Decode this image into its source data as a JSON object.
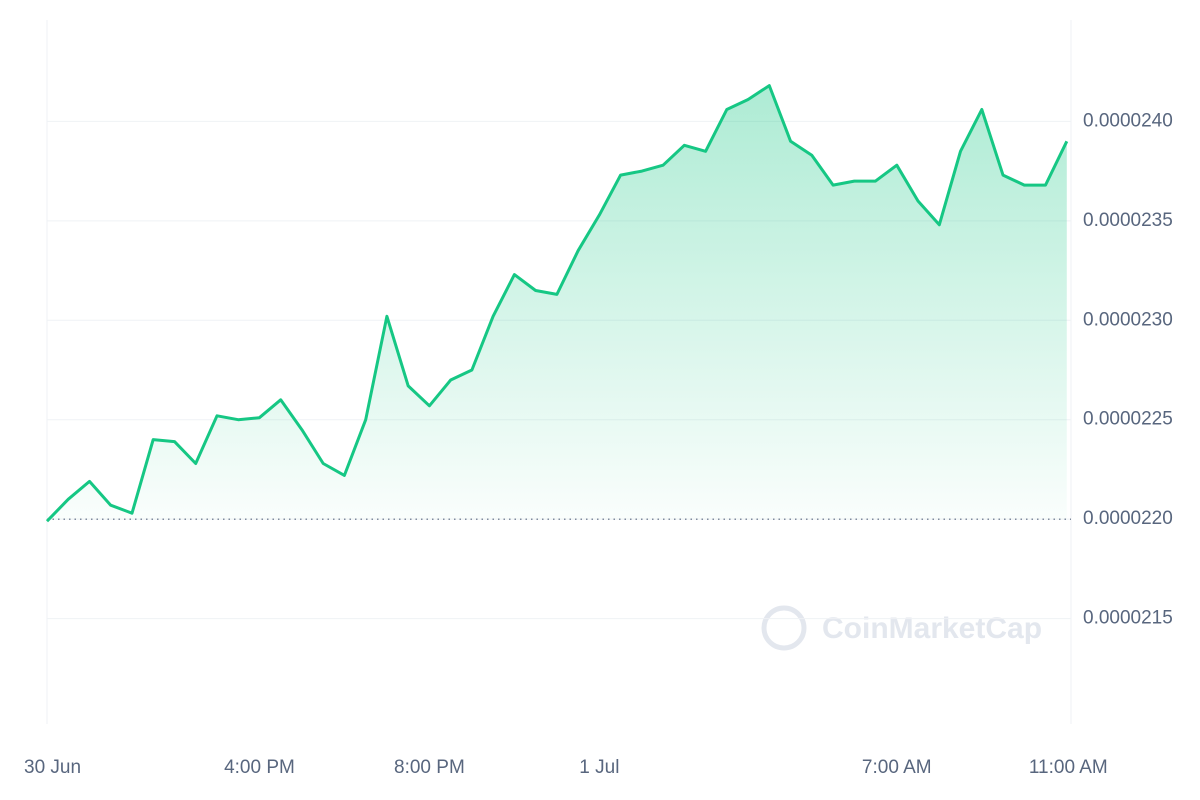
{
  "chart_data": {
    "type": "line",
    "watermark": "CoinMarketCap",
    "x": [
      0,
      0.5,
      1,
      1.5,
      2,
      2.5,
      3,
      3.5,
      4,
      4.5,
      5,
      5.5,
      6,
      6.5,
      7,
      7.5,
      8,
      8.5,
      9,
      9.5,
      10,
      10.5,
      11,
      11.5,
      12,
      12.5,
      13,
      13.5,
      14,
      14.5,
      15,
      15.5,
      16,
      16.5,
      17,
      17.5,
      18,
      18.5,
      19,
      19.5,
      20,
      20.5,
      21,
      21.5,
      22,
      22.5,
      23,
      23.5,
      24
    ],
    "series": [
      {
        "color": "#16c784",
        "values": [
          2.199e-05,
          2.21e-05,
          2.219e-05,
          2.207e-05,
          2.203e-05,
          2.24e-05,
          2.239e-05,
          2.228e-05,
          2.252e-05,
          2.25e-05,
          2.251e-05,
          2.26e-05,
          2.245e-05,
          2.228e-05,
          2.222e-05,
          2.25e-05,
          2.302e-05,
          2.267e-05,
          2.257e-05,
          2.27e-05,
          2.275e-05,
          2.302e-05,
          2.323e-05,
          2.315e-05,
          2.313e-05,
          2.335e-05,
          2.353e-05,
          2.373e-05,
          2.375e-05,
          2.378e-05,
          2.388e-05,
          2.385e-05,
          2.406e-05,
          2.411e-05,
          2.418e-05,
          2.39e-05,
          2.383e-05,
          2.368e-05,
          2.37e-05,
          2.37e-05,
          2.378e-05,
          2.36e-05,
          2.348e-05,
          2.385e-05,
          2.406e-05,
          2.373e-05,
          2.368e-05,
          2.368e-05,
          2.39e-05
        ]
      }
    ],
    "baseline": 2.2e-05,
    "xlim": [
      0,
      24.1
    ],
    "xticks": [
      {
        "value": 0,
        "label": "30 Jun"
      },
      {
        "value": 5,
        "label": "4:00 PM"
      },
      {
        "value": 9,
        "label": "8:00 PM"
      },
      {
        "value": 13,
        "label": "1 Jul"
      },
      {
        "value": 20,
        "label": "7:00 AM"
      },
      {
        "value": 24,
        "label": "11:00 AM"
      }
    ],
    "ylim": [
      2.097e-05,
      2.451e-05
    ],
    "yticks": [
      {
        "value": 2.15e-05,
        "label": "0.0000215"
      },
      {
        "value": 2.2e-05,
        "label": "0.0000220"
      },
      {
        "value": 2.25e-05,
        "label": "0.0000225"
      },
      {
        "value": 2.3e-05,
        "label": "0.0000230"
      },
      {
        "value": 2.35e-05,
        "label": "0.0000235"
      },
      {
        "value": 2.4e-05,
        "label": "0.0000240"
      }
    ],
    "grid": true
  }
}
